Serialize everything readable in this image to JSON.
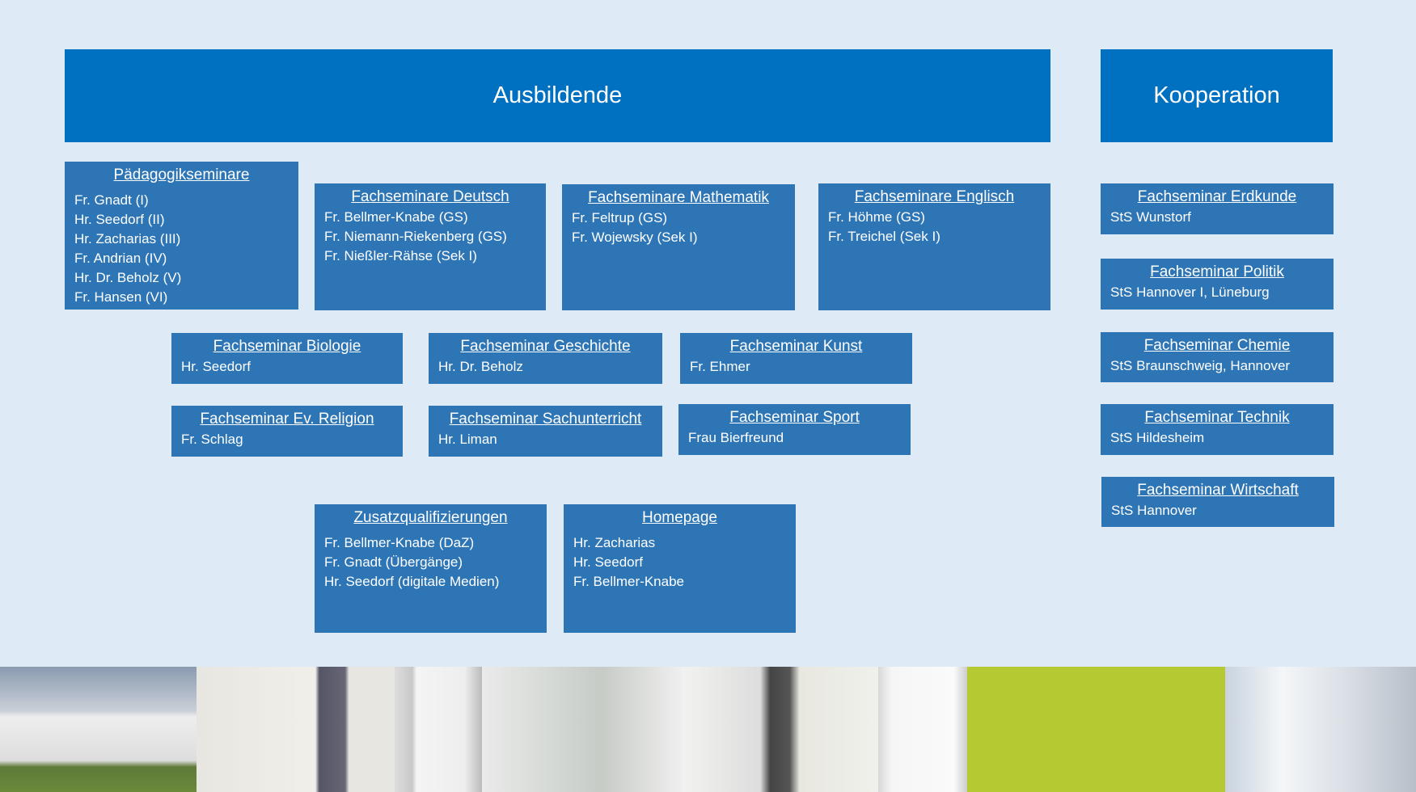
{
  "header": {
    "ausbildende": "Ausbildende",
    "kooperation": "Kooperation"
  },
  "left_boxes": [
    {
      "title": "Pädagogikseminare",
      "lines": [
        "Fr. Gnadt (I)",
        "Hr. Seedorf (II)",
        "Hr. Zacharias (III)",
        "Fr. Andrian (IV)",
        "Hr. Dr. Beholz (V)",
        "Fr. Hansen (VI)"
      ]
    },
    {
      "title": "Fachseminare Deutsch",
      "lines": [
        "Fr. Bellmer-Knabe (GS)",
        "Fr. Niemann-Riekenberg (GS)",
        "Fr. Nießler-Rähse (Sek I)"
      ]
    },
    {
      "title": "Fachseminare Mathematik",
      "lines": [
        "Fr. Feltrup (GS)",
        "Fr. Wojewsky (Sek I)"
      ]
    },
    {
      "title": "Fachseminare Englisch",
      "lines": [
        "Fr. Höhme (GS)",
        "Fr. Treichel (Sek I)"
      ]
    },
    {
      "title": "Fachseminar Biologie",
      "lines": [
        "Hr. Seedorf"
      ]
    },
    {
      "title": "Fachseminar Geschichte",
      "lines": [
        "Hr. Dr. Beholz"
      ]
    },
    {
      "title": "Fachseminar Kunst",
      "lines": [
        "Fr. Ehmer"
      ]
    },
    {
      "title": "Fachseminar Ev. Religion",
      "lines": [
        "Fr. Schlag"
      ]
    },
    {
      "title": "Fachseminar Sachunterricht",
      "lines": [
        "Hr. Liman"
      ]
    },
    {
      "title": "Fachseminar Sport",
      "lines": [
        "Frau Bierfreund"
      ]
    },
    {
      "title": "Zusatzqualifizierungen",
      "lines": [
        "Fr. Bellmer-Knabe (DaZ)",
        "Fr. Gnadt (Übergänge)",
        "Hr. Seedorf (digitale Medien)"
      ]
    },
    {
      "title": "Homepage",
      "lines": [
        "Hr. Zacharias",
        "Hr. Seedorf",
        "Fr. Bellmer-Knabe"
      ]
    }
  ],
  "right_boxes": [
    {
      "title": "Fachseminar Erdkunde",
      "lines": [
        "StS Wunstorf"
      ]
    },
    {
      "title": "Fachseminar Politik",
      "lines": [
        "StS Hannover I, Lüneburg"
      ]
    },
    {
      "title": "Fachseminar Chemie",
      "lines": [
        "StS Braunschweig, Hannover"
      ]
    },
    {
      "title": "Fachseminar Technik",
      "lines": [
        "StS Hildesheim"
      ]
    },
    {
      "title": "Fachseminar Wirtschaft",
      "lines": [
        "StS Hannover"
      ]
    }
  ],
  "colors": {
    "background": "#deebf7",
    "banner": "#0070c0",
    "box": "#2e75b6"
  }
}
